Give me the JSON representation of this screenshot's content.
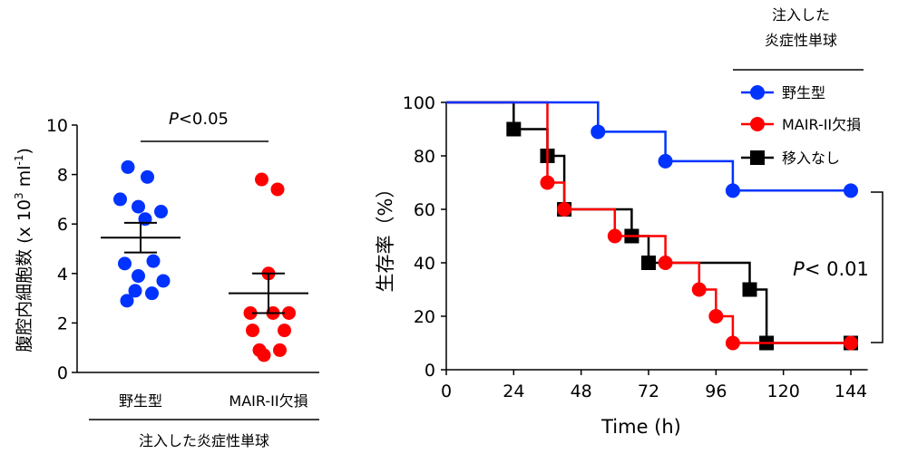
{
  "colors": {
    "wt": "#0033ff",
    "mair": "#ff0000",
    "none": "#000000",
    "axis": "#000000"
  },
  "chart_data": [
    {
      "type": "scatter",
      "ylabel": "腹腔内細胞数 (x 10",
      "ylabel_sup1": "3",
      "ylabel_mid": " ml",
      "ylabel_sup2": "-1",
      "ylabel_end": ")",
      "ylim": [
        0,
        10
      ],
      "yticks": [
        "0",
        "2",
        "4",
        "6",
        "8",
        "10"
      ],
      "categories": [
        "野生型",
        "MAIR-II欠損"
      ],
      "group_label": "注入した炎症性単球",
      "significance": {
        "italic": "P",
        "rest": "<0.05"
      },
      "series": [
        {
          "category": "野生型",
          "color": "wt",
          "points": [
            [
              -0.28,
              8.3
            ],
            [
              0.15,
              7.9
            ],
            [
              -0.45,
              7.0
            ],
            [
              -0.05,
              6.7
            ],
            [
              0.45,
              6.5
            ],
            [
              0.1,
              6.2
            ],
            [
              0.28,
              4.5
            ],
            [
              -0.35,
              4.4
            ],
            [
              -0.05,
              3.9
            ],
            [
              0.5,
              3.7
            ],
            [
              -0.12,
              3.3
            ],
            [
              0.25,
              3.2
            ],
            [
              -0.3,
              2.9
            ]
          ],
          "mean": 5.45,
          "sem_low": 4.85,
          "sem_high": 6.05
        },
        {
          "category": "MAIR-II欠損",
          "color": "mair",
          "points": [
            [
              -0.15,
              7.8
            ],
            [
              0.2,
              7.4
            ],
            [
              0.0,
              4.0
            ],
            [
              -0.4,
              2.4
            ],
            [
              0.1,
              2.4
            ],
            [
              0.45,
              2.4
            ],
            [
              -0.35,
              1.7
            ],
            [
              0.35,
              1.7
            ],
            [
              -0.2,
              0.9
            ],
            [
              0.25,
              0.9
            ],
            [
              -0.1,
              0.7
            ]
          ],
          "mean": 3.2,
          "sem_low": 2.4,
          "sem_high": 4.0
        }
      ]
    },
    {
      "type": "line",
      "ylabel": "生存率（%）",
      "xlabel": "Time (h)",
      "xlim": [
        0,
        150
      ],
      "ylim": [
        0,
        100
      ],
      "xticks": [
        "0",
        "24",
        "48",
        "72",
        "96",
        "120",
        "144"
      ],
      "yticks": [
        "0",
        "20",
        "40",
        "60",
        "80",
        "100"
      ],
      "legend_title": [
        "注入した",
        "炎症性単球"
      ],
      "significance": {
        "italic": "P",
        "rest": "< 0.01"
      },
      "series": [
        {
          "name": "野生型",
          "color": "wt",
          "marker": "circle",
          "steps": [
            [
              0,
              100
            ],
            [
              54,
              100
            ],
            [
              54,
              89
            ],
            [
              78,
              89
            ],
            [
              78,
              78
            ],
            [
              102,
              78
            ],
            [
              102,
              67
            ],
            [
              144,
              67
            ]
          ],
          "markers": [
            [
              54,
              89
            ],
            [
              78,
              78
            ],
            [
              102,
              67
            ],
            [
              144,
              67
            ]
          ]
        },
        {
          "name": "MAIR-II欠損",
          "color": "mair",
          "marker": "circle",
          "steps": [
            [
              0,
              100
            ],
            [
              36,
              100
            ],
            [
              36,
              70
            ],
            [
              42,
              70
            ],
            [
              42,
              60
            ],
            [
              60,
              60
            ],
            [
              60,
              50
            ],
            [
              78,
              50
            ],
            [
              78,
              40
            ],
            [
              90,
              40
            ],
            [
              90,
              30
            ],
            [
              96,
              30
            ],
            [
              96,
              20
            ],
            [
              102,
              20
            ],
            [
              102,
              10
            ],
            [
              144,
              10
            ]
          ],
          "markers": [
            [
              36,
              70
            ],
            [
              42,
              60
            ],
            [
              60,
              50
            ],
            [
              78,
              40
            ],
            [
              90,
              30
            ],
            [
              96,
              20
            ],
            [
              102,
              10
            ],
            [
              144,
              10
            ]
          ]
        },
        {
          "name": "移入なし",
          "color": "none",
          "marker": "square",
          "steps": [
            [
              0,
              100
            ],
            [
              24,
              100
            ],
            [
              24,
              90
            ],
            [
              36,
              90
            ],
            [
              36,
              80
            ],
            [
              42,
              80
            ],
            [
              42,
              60
            ],
            [
              66,
              60
            ],
            [
              66,
              50
            ],
            [
              72,
              50
            ],
            [
              72,
              40
            ],
            [
              108,
              40
            ],
            [
              108,
              30
            ],
            [
              114,
              30
            ],
            [
              114,
              10
            ],
            [
              144,
              10
            ]
          ],
          "markers": [
            [
              24,
              90
            ],
            [
              36,
              80
            ],
            [
              42,
              60
            ],
            [
              66,
              50
            ],
            [
              72,
              40
            ],
            [
              108,
              30
            ],
            [
              114,
              10
            ],
            [
              144,
              10
            ]
          ]
        }
      ]
    }
  ]
}
